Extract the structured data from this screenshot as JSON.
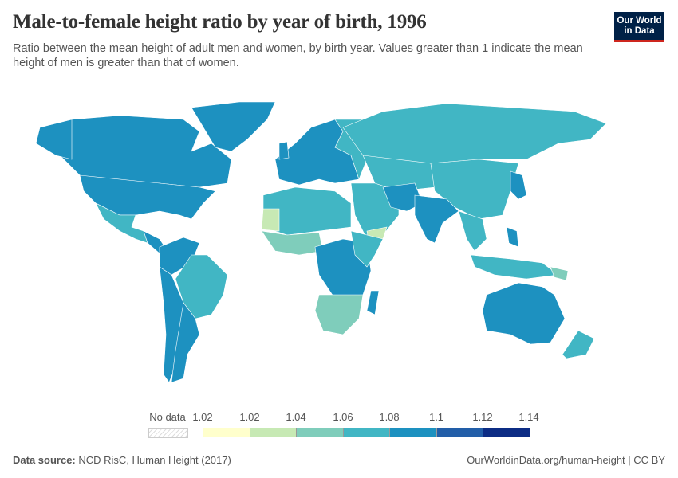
{
  "header": {
    "title": "Male-to-female height ratio by year of birth, 1996",
    "subtitle": "Ratio between the mean height of adult men and women, by birth year. Values greater than 1 indicate the mean height of men is greater than that of women.",
    "logo": "Our World in Data"
  },
  "legend": {
    "no_data_label": "No data",
    "ticks": [
      "1.02",
      "1.02",
      "1.04",
      "1.06",
      "1.08",
      "1.1",
      "1.12",
      "1.14"
    ],
    "colors": [
      "#ffffcc",
      "#c7e9b4",
      "#7fcdbb",
      "#41b6c4",
      "#1d91c0",
      "#225ea8",
      "#0c2c84"
    ]
  },
  "footer": {
    "source_label": "Data source:",
    "source": "NCD RisC, Human Height (2017)",
    "url": "OurWorldinData.org/human-height | CC BY"
  }
}
